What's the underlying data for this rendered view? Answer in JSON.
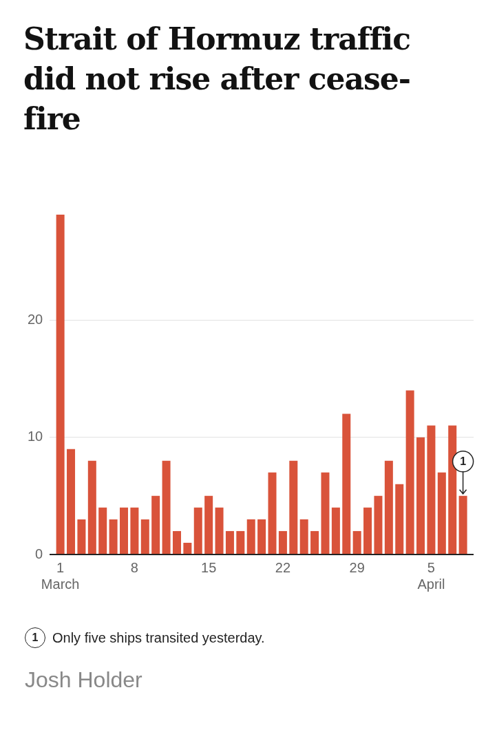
{
  "chart_data": {
    "type": "bar",
    "title": "Strait of Hormuz traffic did not rise after cease-fire",
    "x": [
      "--03-01",
      "--03-02",
      "--03-03",
      "--03-04",
      "--03-05",
      "--03-06",
      "--03-07",
      "--03-08",
      "--03-09",
      "--03-10",
      "--03-11",
      "--03-12",
      "--03-13",
      "--03-14",
      "--03-15",
      "--03-16",
      "--03-17",
      "--03-18",
      "--03-19",
      "--03-20",
      "--03-21",
      "--03-22",
      "--03-23",
      "--03-24",
      "--03-25",
      "--03-26",
      "--03-27",
      "--03-28",
      "--03-29",
      "--03-30",
      "--03-31",
      "--04-01",
      "--04-02",
      "--04-03",
      "--04-04",
      "--04-05",
      "--04-06",
      "--04-07",
      "--04-08"
    ],
    "values": [
      29,
      9,
      3,
      8,
      4,
      3,
      4,
      4,
      3,
      5,
      8,
      2,
      1,
      4,
      5,
      4,
      2,
      2,
      3,
      3,
      7,
      2,
      8,
      3,
      2,
      7,
      4,
      12,
      2,
      4,
      5,
      8,
      6,
      14,
      10,
      11,
      7,
      11,
      5
    ],
    "color": "#d9533a",
    "ylim": [
      0,
      29
    ],
    "yticks": [
      0,
      10,
      20
    ],
    "xlim": [
      "--02-28",
      "--04-09"
    ],
    "xticks": [
      {
        "value": "--03-01",
        "label": "1\nMarch"
      },
      {
        "value": "--03-08",
        "label": "8"
      },
      {
        "value": "--03-15",
        "label": "15"
      },
      {
        "value": "--03-22",
        "label": "22"
      },
      {
        "value": "--03-29",
        "label": "29"
      },
      {
        "value": "--04-05",
        "label": "5\nApril"
      }
    ],
    "grid": "y",
    "annotations": [
      {
        "text": "1",
        "x": "--04-08",
        "y": 5
      },
      "Only five ships transited yesterday.",
      "Josh Holder"
    ]
  }
}
